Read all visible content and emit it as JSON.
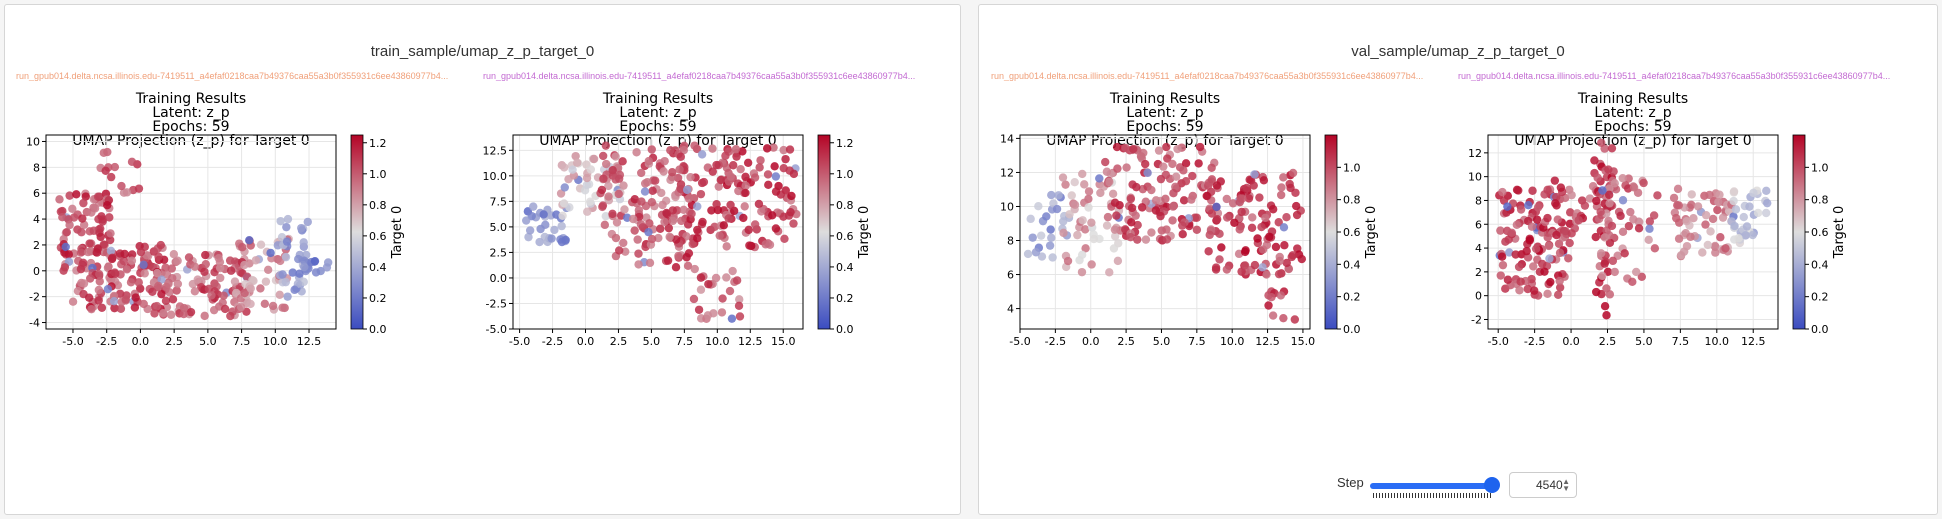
{
  "panels": [
    {
      "title": "train_sample/umap_z_p_target_0",
      "runs": [
        "run_gpub014.delta.ncsa.illinois.edu-7419511_a4efaf0218caa7b49376caa55a3b0f355931c6ee43860977b4...",
        "run_gpub014.delta.ncsa.illinois.edu-7419511_a4efaf0218caa7b49376caa55a3b0f355931c6ee43860977b4..."
      ]
    },
    {
      "title": "val_sample/umap_z_p_target_0",
      "runs": [
        "run_gpub014.delta.ncsa.illinois.edu-7419511_a4efaf0218caa7b49376caa55a3b0f355931c6ee43860977b4...",
        "run_gpub014.delta.ncsa.illinois.edu-7419511_a4efaf0218caa7b49376caa55a3b0f355931c6ee43860977b4..."
      ]
    }
  ],
  "step": {
    "label": "Step",
    "value": "4540"
  },
  "colors": {
    "cold": "#3b4cc0",
    "neutral": "#dddddd",
    "warm": "#b40426",
    "slider": "#2a6df5"
  },
  "chart_data": [
    {
      "type": "scatter",
      "title": [
        "Training Results",
        "Latent: z_p",
        "Epochs: 59",
        "UMAP Projection (z_p) for Target 0"
      ],
      "xlim": [
        -7,
        14.5
      ],
      "ylim": [
        -4.5,
        10.5
      ],
      "xticks": [
        "-5.0",
        "-2.5",
        "0.0",
        "2.5",
        "5.0",
        "7.5",
        "10.0",
        "12.5"
      ],
      "xtick_values": [
        -5,
        -2.5,
        0,
        2.5,
        5,
        7.5,
        10,
        12.5
      ],
      "yticks": [
        "-4",
        "-2",
        "0",
        "2",
        "4",
        "6",
        "8",
        "10"
      ],
      "ytick_values": [
        -4,
        -2,
        0,
        2,
        4,
        6,
        8,
        10
      ],
      "colorbar": {
        "label": "Target 0",
        "range": [
          0,
          1.25
        ],
        "ticks": [
          "0.0",
          "0.2",
          "0.4",
          "0.6",
          "0.8",
          "1.0",
          "1.2"
        ],
        "tick_values": [
          0,
          0.2,
          0.4,
          0.6,
          0.8,
          1.0,
          1.2
        ]
      },
      "grid": true,
      "clusters": [
        {
          "x": [
            -6,
            -2
          ],
          "y": [
            0,
            6
          ],
          "n": 90,
          "target": 1.05
        },
        {
          "x": [
            -5,
            2
          ],
          "y": [
            -3,
            2
          ],
          "n": 110,
          "target": 1.05
        },
        {
          "x": [
            1,
            8
          ],
          "y": [
            -3.5,
            1.5
          ],
          "n": 100,
          "target": 1.0
        },
        {
          "x": [
            -3,
            0
          ],
          "y": [
            6,
            9.5
          ],
          "n": 14,
          "target": 1.0
        },
        {
          "x": [
            7,
            11
          ],
          "y": [
            -3,
            2.5
          ],
          "n": 55,
          "target": 0.85
        },
        {
          "x": [
            10,
            12.5
          ],
          "y": [
            -2,
            4.5
          ],
          "n": 40,
          "target": 0.35
        },
        {
          "x": [
            12,
            14
          ],
          "y": [
            -0.5,
            0.8
          ],
          "n": 10,
          "target": 0.2
        }
      ]
    },
    {
      "type": "scatter",
      "title": [
        "Training Results",
        "Latent: z_p",
        "Epochs: 59",
        "UMAP Projection (z_p) for Target 0"
      ],
      "xlim": [
        -5.5,
        16.5
      ],
      "ylim": [
        -5,
        14
      ],
      "xticks": [
        "-5.0",
        "-2.5",
        "0.0",
        "2.5",
        "5.0",
        "7.5",
        "10.0",
        "12.5",
        "15.0"
      ],
      "xtick_values": [
        -5,
        -2.5,
        0,
        2.5,
        5,
        7.5,
        10,
        12.5,
        15
      ],
      "yticks": [
        "-5.0",
        "-2.5",
        "0.0",
        "2.5",
        "5.0",
        "7.5",
        "10.0",
        "12.5"
      ],
      "ytick_values": [
        -5,
        -2.5,
        0,
        2.5,
        5,
        7.5,
        10,
        12.5
      ],
      "colorbar": {
        "label": "Target 0",
        "range": [
          0,
          1.25
        ],
        "ticks": [
          "0.0",
          "0.2",
          "0.4",
          "0.6",
          "0.8",
          "1.0",
          "1.2"
        ],
        "tick_values": [
          0,
          0.2,
          0.4,
          0.6,
          0.8,
          1.0,
          1.2
        ]
      },
      "grid": true,
      "clusters": [
        {
          "x": [
            -4.5,
            -1
          ],
          "y": [
            3.5,
            7
          ],
          "n": 30,
          "target": 0.3
        },
        {
          "x": [
            -2,
            3
          ],
          "y": [
            6,
            12
          ],
          "n": 50,
          "target": 0.7
        },
        {
          "x": [
            1,
            8
          ],
          "y": [
            5,
            13
          ],
          "n": 90,
          "target": 1.0
        },
        {
          "x": [
            7,
            16
          ],
          "y": [
            3,
            13
          ],
          "n": 150,
          "target": 1.08
        },
        {
          "x": [
            2,
            8
          ],
          "y": [
            1,
            6
          ],
          "n": 45,
          "target": 1.05
        },
        {
          "x": [
            8,
            12
          ],
          "y": [
            -4,
            1
          ],
          "n": 25,
          "target": 1.0
        }
      ]
    },
    {
      "type": "scatter",
      "title": [
        "Training Results",
        "Latent: z_p",
        "Epochs: 59",
        "UMAP Projection (z_p) for Target 0"
      ],
      "xlim": [
        -5,
        15.5
      ],
      "ylim": [
        2.8,
        14.2
      ],
      "xticks": [
        "-5.0",
        "-2.5",
        "0.0",
        "2.5",
        "5.0",
        "7.5",
        "10.0",
        "12.5",
        "15.0"
      ],
      "xtick_values": [
        -5,
        -2.5,
        0,
        2.5,
        5,
        7.5,
        10,
        12.5,
        15
      ],
      "yticks": [
        "4",
        "6",
        "8",
        "10",
        "12",
        "14"
      ],
      "ytick_values": [
        4,
        6,
        8,
        10,
        12,
        14
      ],
      "colorbar": {
        "label": "Target 0",
        "range": [
          0,
          1.2
        ],
        "ticks": [
          "0.0",
          "0.2",
          "0.4",
          "0.6",
          "0.8",
          "1.0"
        ],
        "tick_values": [
          0,
          0.2,
          0.4,
          0.6,
          0.8,
          1.0
        ]
      },
      "grid": true,
      "clusters": [
        {
          "x": [
            -4.5,
            -1.5
          ],
          "y": [
            7,
            11
          ],
          "n": 25,
          "target": 0.35
        },
        {
          "x": [
            -2,
            2
          ],
          "y": [
            6,
            12
          ],
          "n": 50,
          "target": 0.75
        },
        {
          "x": [
            1,
            9
          ],
          "y": [
            8,
            13.5
          ],
          "n": 130,
          "target": 1.0
        },
        {
          "x": [
            8,
            15
          ],
          "y": [
            6,
            12
          ],
          "n": 110,
          "target": 1.05
        },
        {
          "x": [
            12.5,
            14.5
          ],
          "y": [
            3,
            7
          ],
          "n": 15,
          "target": 1.0
        }
      ]
    },
    {
      "type": "scatter",
      "title": [
        "Training Results",
        "Latent: z_p",
        "Epochs: 59",
        "UMAP Projection (z_p) for Target 0"
      ],
      "xlim": [
        -5.7,
        14.2
      ],
      "ylim": [
        -2.8,
        13.5
      ],
      "xticks": [
        "-5.0",
        "-2.5",
        "0.0",
        "2.5",
        "5.0",
        "7.5",
        "10.0",
        "12.5"
      ],
      "xtick_values": [
        -5,
        -2.5,
        0,
        2.5,
        5,
        7.5,
        10,
        12.5
      ],
      "yticks": [
        "-2",
        "0",
        "2",
        "4",
        "6",
        "8",
        "10",
        "12"
      ],
      "ytick_values": [
        -2,
        0,
        2,
        4,
        6,
        8,
        10,
        12
      ],
      "colorbar": {
        "label": "Target 0",
        "range": [
          0,
          1.2
        ],
        "ticks": [
          "0.0",
          "0.2",
          "0.4",
          "0.6",
          "0.8",
          "1.0"
        ],
        "tick_values": [
          0,
          0.2,
          0.4,
          0.6,
          0.8,
          1.0
        ]
      },
      "grid": true,
      "clusters": [
        {
          "x": [
            -5,
            0
          ],
          "y": [
            0,
            9
          ],
          "n": 120,
          "target": 1.05
        },
        {
          "x": [
            -2,
            3
          ],
          "y": [
            5,
            10
          ],
          "n": 40,
          "target": 1.0
        },
        {
          "x": [
            1.5,
            3
          ],
          "y": [
            -2.5,
            13
          ],
          "n": 40,
          "target": 1.05
        },
        {
          "x": [
            2,
            6
          ],
          "y": [
            1,
            10
          ],
          "n": 50,
          "target": 0.95
        },
        {
          "x": [
            7,
            11
          ],
          "y": [
            3,
            9
          ],
          "n": 60,
          "target": 0.85
        },
        {
          "x": [
            11,
            13.5
          ],
          "y": [
            4,
            9
          ],
          "n": 35,
          "target": 0.5
        }
      ]
    }
  ]
}
